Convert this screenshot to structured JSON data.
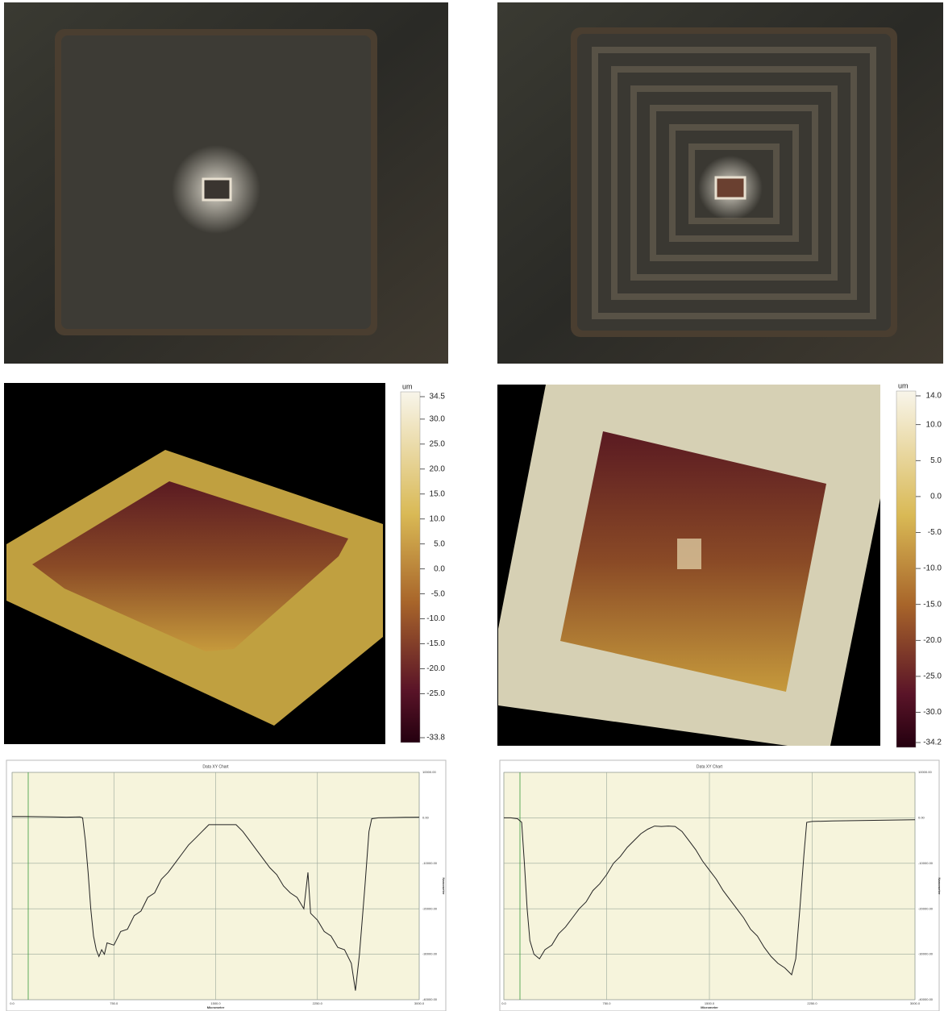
{
  "colorbars": [
    {
      "unit": "um",
      "range": [
        -33.8,
        34.5
      ],
      "ticks": [
        34.5,
        {
          "value": 30,
          "label": "30.0"
        },
        {
          "value": 25,
          "label": "25.0"
        },
        {
          "value": 20,
          "label": "20.0"
        },
        {
          "value": 15,
          "label": "15.0"
        },
        {
          "value": 10,
          "label": "10.0"
        },
        {
          "value": 5,
          "label": "5.0"
        },
        {
          "value": 0,
          "label": "0.0"
        },
        {
          "value": -5,
          "label": "-5.0"
        },
        {
          "value": -10,
          "label": "-10.0"
        },
        {
          "value": -15,
          "label": "-15.0"
        },
        {
          "value": -20,
          "label": "-20.0"
        },
        {
          "value": -25,
          "label": "-25.0"
        },
        -33.8
      ]
    },
    {
      "unit": "um",
      "range": [
        -34.2,
        14
      ],
      "ticks": [
        {
          "value": 14,
          "label": "14.0"
        },
        {
          "value": 10,
          "label": "10.0"
        },
        {
          "value": 5,
          "label": "5.0"
        },
        {
          "value": 0,
          "label": "0.0"
        },
        {
          "value": -5,
          "label": "-5.0"
        },
        {
          "value": -10,
          "label": "-10.0"
        },
        {
          "value": -15,
          "label": "-15.0"
        },
        {
          "value": -20,
          "label": "-20.0"
        },
        {
          "value": -25,
          "label": "-25.0"
        },
        {
          "value": -30,
          "label": "-30.0"
        },
        -34.2
      ]
    }
  ],
  "chart_data": [
    {
      "type": "line",
      "title": "Data XY Chart",
      "x_label": "Micrometer",
      "y_label": "Nanometer",
      "x": [
        0,
        100,
        200,
        300,
        400,
        500,
        520,
        540,
        560,
        580,
        600,
        620,
        640,
        660,
        680,
        700,
        750,
        800,
        850,
        900,
        950,
        1000,
        1050,
        1100,
        1150,
        1200,
        1250,
        1300,
        1350,
        1400,
        1450,
        1500,
        1550,
        1600,
        1650,
        1700,
        1750,
        1800,
        1850,
        1900,
        1950,
        2000,
        2050,
        2100,
        2150,
        2180,
        2200,
        2250,
        2300,
        2350,
        2400,
        2450,
        2500,
        2530,
        2560,
        2600,
        2630,
        2650,
        2700,
        2800,
        2900,
        3000
      ],
      "series": [
        {
          "color": "#222222",
          "values": [
            300,
            300,
            250,
            200,
            150,
            200,
            0,
            -5000,
            -12000,
            -20000,
            -26000,
            -29000,
            -30500,
            -29000,
            -30000,
            -27500,
            -28000,
            -25000,
            -24500,
            -21500,
            -20500,
            -17500,
            -16500,
            -13500,
            -12000,
            -10000,
            -8000,
            -6000,
            -4500,
            -3000,
            -1500,
            -1500,
            -1500,
            -1500,
            -1500,
            -3000,
            -5000,
            -7000,
            -9000,
            -11000,
            -12500,
            -15000,
            -16500,
            -17500,
            -20000,
            -12000,
            -21000,
            -22500,
            -25000,
            -26000,
            -28500,
            -29000,
            -32000,
            -38000,
            -30000,
            -15000,
            -3000,
            -200,
            0,
            50,
            100,
            150
          ]
        }
      ],
      "xlim": [
        0,
        3000
      ],
      "ylim": [
        -40000,
        10000
      ],
      "xticks": [
        {
          "value": 0,
          "label": "0.0"
        },
        {
          "value": 750,
          "label": "750.0"
        },
        {
          "value": 1500,
          "label": "1500.0"
        },
        {
          "value": 2250,
          "label": "2250.0"
        },
        {
          "value": 3000,
          "label": "3000.0"
        }
      ],
      "yticks": [
        {
          "value": 10000,
          "label": "10000.00"
        },
        {
          "value": 0,
          "label": "0.00"
        },
        {
          "value": -10000,
          "label": "-10000.00"
        },
        {
          "value": -20000,
          "label": "-20000.00"
        },
        {
          "value": -30000,
          "label": "-30000.00"
        },
        {
          "value": -40000,
          "label": "-40000.00"
        }
      ],
      "grid": true
    },
    {
      "type": "line",
      "title": "Data XY Chart",
      "x_label": "Micrometer",
      "y_label": "Nanometer",
      "x": [
        0,
        50,
        100,
        130,
        150,
        170,
        190,
        220,
        260,
        300,
        350,
        400,
        450,
        500,
        550,
        600,
        650,
        700,
        750,
        800,
        850,
        900,
        950,
        1000,
        1050,
        1100,
        1150,
        1200,
        1250,
        1300,
        1350,
        1400,
        1450,
        1500,
        1550,
        1600,
        1650,
        1700,
        1750,
        1800,
        1850,
        1900,
        1950,
        2000,
        2050,
        2100,
        2130,
        2160,
        2190,
        2210,
        2250,
        2400,
        2600,
        2800,
        3000
      ],
      "series": [
        {
          "color": "#222222",
          "values": [
            0,
            0,
            -200,
            -1000,
            -10000,
            -20000,
            -27000,
            -30000,
            -31000,
            -29000,
            -28000,
            -25500,
            -24000,
            -22000,
            -20000,
            -18500,
            -16000,
            -14500,
            -12500,
            -10000,
            -8500,
            -6500,
            -5000,
            -3500,
            -2500,
            -1800,
            -1900,
            -1800,
            -1900,
            -3000,
            -5000,
            -7000,
            -9500,
            -11500,
            -13500,
            -16000,
            -18000,
            -20000,
            -22000,
            -24500,
            -26000,
            -28500,
            -30500,
            -32000,
            -33000,
            -34500,
            -31000,
            -20000,
            -8000,
            -1000,
            -800,
            -700,
            -600,
            -500,
            -400
          ]
        }
      ],
      "xlim": [
        0,
        3000
      ],
      "ylim": [
        -40000,
        10000
      ],
      "xticks": [
        {
          "value": 0,
          "label": "0.0"
        },
        {
          "value": 750,
          "label": "750.0"
        },
        {
          "value": 1500,
          "label": "1500.0"
        },
        {
          "value": 2250,
          "label": "2250.0"
        },
        {
          "value": 3000,
          "label": "3000.0"
        }
      ],
      "yticks": [
        {
          "value": 10000,
          "label": "10000.00"
        },
        {
          "value": 0,
          "label": "0.00"
        },
        {
          "value": -10000,
          "label": "-10000.00"
        },
        {
          "value": -20000,
          "label": "-20000.00"
        },
        {
          "value": -30000,
          "label": "-30000.00"
        },
        {
          "value": -40000,
          "label": "-40000.00"
        }
      ],
      "grid": true
    }
  ]
}
